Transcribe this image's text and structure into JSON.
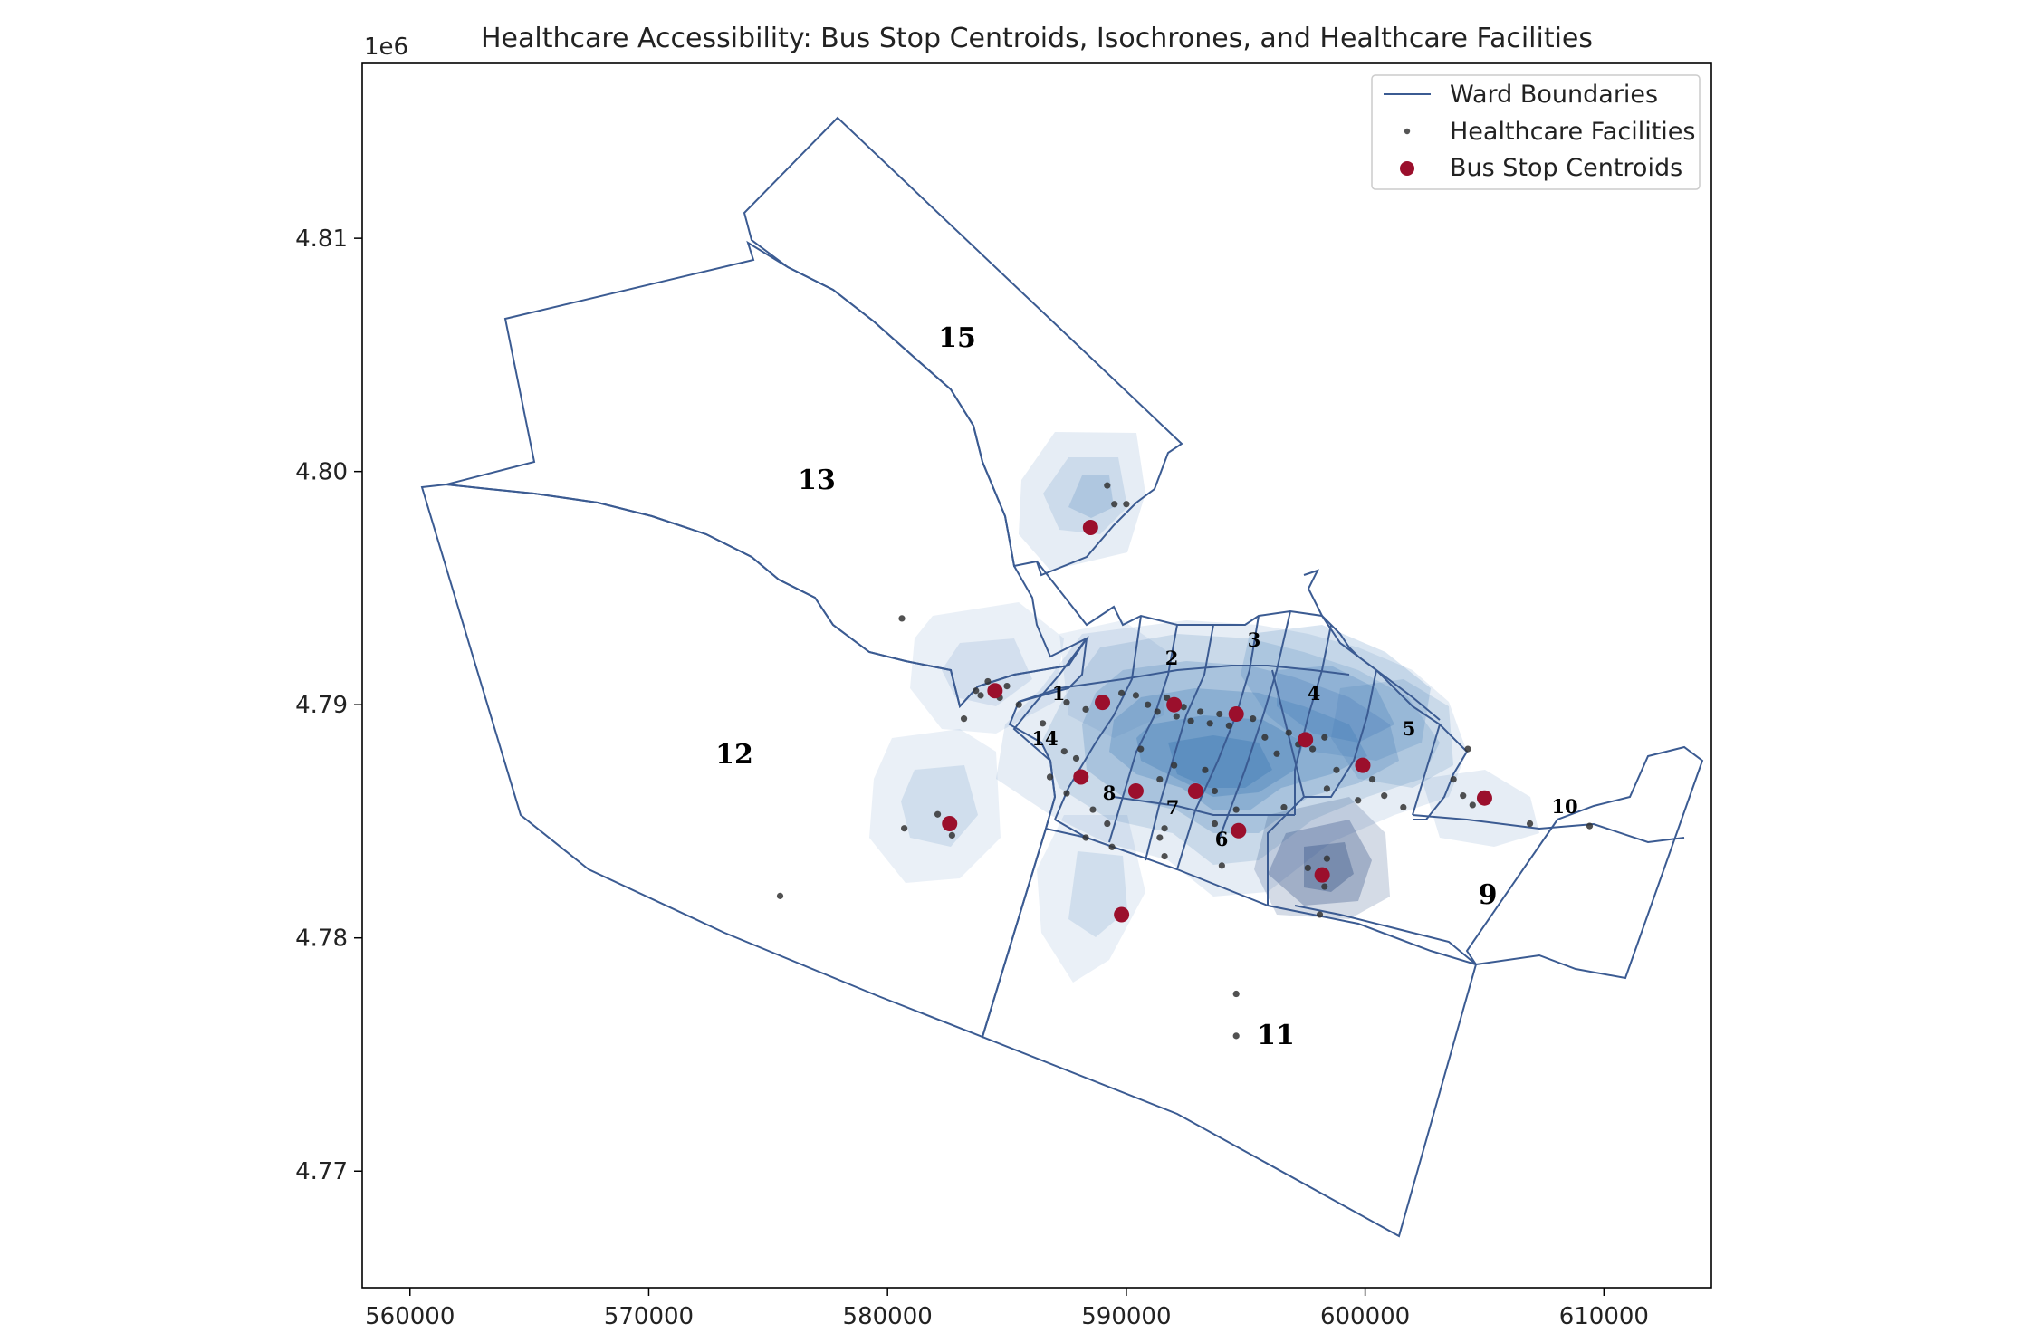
{
  "title": "Healthcare Accessibility: Bus Stop Centroids, Isochrones, and Healthcare Facilities",
  "y_offset_label": "1e6",
  "x_ticks": [
    "560000",
    "570000",
    "580000",
    "590000",
    "600000",
    "610000"
  ],
  "y_ticks": [
    "4.77",
    "4.78",
    "4.79",
    "4.80",
    "4.81"
  ],
  "legend": {
    "items": [
      {
        "label": "Ward Boundaries",
        "kind": "line",
        "color": "#3b5b92"
      },
      {
        "label": "Healthcare Facilities",
        "kind": "small-dot",
        "color": "#555555"
      },
      {
        "label": "Bus Stop Centroids",
        "kind": "dot",
        "color": "#9b0f2c"
      }
    ]
  },
  "wards": [
    {
      "label": "15"
    },
    {
      "label": "13"
    },
    {
      "label": "12"
    },
    {
      "label": "1"
    },
    {
      "label": "2"
    },
    {
      "label": "3"
    },
    {
      "label": "4"
    },
    {
      "label": "5"
    },
    {
      "label": "14"
    },
    {
      "label": "8"
    },
    {
      "label": "7"
    },
    {
      "label": "6"
    },
    {
      "label": "10"
    },
    {
      "label": "9"
    },
    {
      "label": "11"
    }
  ],
  "chart_data": {
    "type": "map",
    "title": "Healthcare Accessibility: Bus Stop Centroids, Isochrones, and Healthcare Facilities",
    "xlim": [
      558000,
      614500
    ],
    "ylim": [
      4765000,
      4817500
    ],
    "legend_position": "top-right",
    "colors": {
      "ward_boundary": "#3b5b92",
      "bus_stop": "#9b0f2c",
      "facility": "#333333",
      "isochrone": "#2f6fb0"
    },
    "bus_stop_centroids": [
      {
        "x": 588500,
        "y": 4797600
      },
      {
        "x": 584500,
        "y": 4790600
      },
      {
        "x": 589000,
        "y": 4790100
      },
      {
        "x": 592000,
        "y": 4790000
      },
      {
        "x": 594600,
        "y": 4789600
      },
      {
        "x": 597500,
        "y": 4788500
      },
      {
        "x": 599900,
        "y": 4787400
      },
      {
        "x": 588100,
        "y": 4786900
      },
      {
        "x": 590400,
        "y": 4786300
      },
      {
        "x": 592900,
        "y": 4786300
      },
      {
        "x": 594700,
        "y": 4784600
      },
      {
        "x": 582600,
        "y": 4784900
      },
      {
        "x": 598200,
        "y": 4782700
      },
      {
        "x": 589800,
        "y": 4781000
      },
      {
        "x": 605000,
        "y": 4786000
      }
    ],
    "healthcare_facilities": [
      {
        "x": 589200,
        "y": 4799400
      },
      {
        "x": 589500,
        "y": 4798600
      },
      {
        "x": 590000,
        "y": 4798600
      },
      {
        "x": 580600,
        "y": 4793700
      },
      {
        "x": 583700,
        "y": 4790600
      },
      {
        "x": 584200,
        "y": 4791000
      },
      {
        "x": 585000,
        "y": 4790800
      },
      {
        "x": 583200,
        "y": 4789400
      },
      {
        "x": 584700,
        "y": 4790300
      },
      {
        "x": 583900,
        "y": 4790400
      },
      {
        "x": 585500,
        "y": 4790000
      },
      {
        "x": 586500,
        "y": 4789200
      },
      {
        "x": 587500,
        "y": 4790100
      },
      {
        "x": 588300,
        "y": 4789800
      },
      {
        "x": 589800,
        "y": 4790500
      },
      {
        "x": 590400,
        "y": 4790400
      },
      {
        "x": 590900,
        "y": 4790000
      },
      {
        "x": 591300,
        "y": 4789700
      },
      {
        "x": 591700,
        "y": 4790300
      },
      {
        "x": 592100,
        "y": 4789500
      },
      {
        "x": 592400,
        "y": 4789900
      },
      {
        "x": 592700,
        "y": 4789300
      },
      {
        "x": 593100,
        "y": 4789700
      },
      {
        "x": 593500,
        "y": 4789200
      },
      {
        "x": 593900,
        "y": 4789600
      },
      {
        "x": 594300,
        "y": 4789100
      },
      {
        "x": 595300,
        "y": 4789400
      },
      {
        "x": 595800,
        "y": 4788600
      },
      {
        "x": 596800,
        "y": 4788800
      },
      {
        "x": 597200,
        "y": 4788300
      },
      {
        "x": 597800,
        "y": 4788100
      },
      {
        "x": 598300,
        "y": 4788600
      },
      {
        "x": 596300,
        "y": 4787900
      },
      {
        "x": 598800,
        "y": 4787200
      },
      {
        "x": 600300,
        "y": 4786800
      },
      {
        "x": 600800,
        "y": 4786100
      },
      {
        "x": 601600,
        "y": 4785600
      },
      {
        "x": 599700,
        "y": 4785900
      },
      {
        "x": 598400,
        "y": 4786400
      },
      {
        "x": 596600,
        "y": 4785600
      },
      {
        "x": 603700,
        "y": 4786800
      },
      {
        "x": 604100,
        "y": 4786100
      },
      {
        "x": 604500,
        "y": 4785700
      },
      {
        "x": 604300,
        "y": 4788100
      },
      {
        "x": 606900,
        "y": 4784900
      },
      {
        "x": 609400,
        "y": 4784800
      },
      {
        "x": 587400,
        "y": 4788000
      },
      {
        "x": 587900,
        "y": 4787700
      },
      {
        "x": 586800,
        "y": 4786900
      },
      {
        "x": 587500,
        "y": 4786200
      },
      {
        "x": 588600,
        "y": 4785500
      },
      {
        "x": 589200,
        "y": 4784900
      },
      {
        "x": 588300,
        "y": 4784300
      },
      {
        "x": 589400,
        "y": 4783900
      },
      {
        "x": 590600,
        "y": 4788100
      },
      {
        "x": 591400,
        "y": 4786800
      },
      {
        "x": 592000,
        "y": 4787400
      },
      {
        "x": 593300,
        "y": 4787200
      },
      {
        "x": 593700,
        "y": 4786300
      },
      {
        "x": 591600,
        "y": 4784700
      },
      {
        "x": 591400,
        "y": 4784300
      },
      {
        "x": 591600,
        "y": 4783500
      },
      {
        "x": 593700,
        "y": 4784900
      },
      {
        "x": 594000,
        "y": 4783100
      },
      {
        "x": 594600,
        "y": 4785500
      },
      {
        "x": 582100,
        "y": 4785300
      },
      {
        "x": 580700,
        "y": 4784700
      },
      {
        "x": 582700,
        "y": 4784400
      },
      {
        "x": 597600,
        "y": 4783000
      },
      {
        "x": 598300,
        "y": 4782200
      },
      {
        "x": 598100,
        "y": 4781000
      },
      {
        "x": 598400,
        "y": 4783400
      },
      {
        "x": 575500,
        "y": 4781800
      },
      {
        "x": 594600,
        "y": 4777600
      },
      {
        "x": 594600,
        "y": 4775800
      }
    ]
  }
}
